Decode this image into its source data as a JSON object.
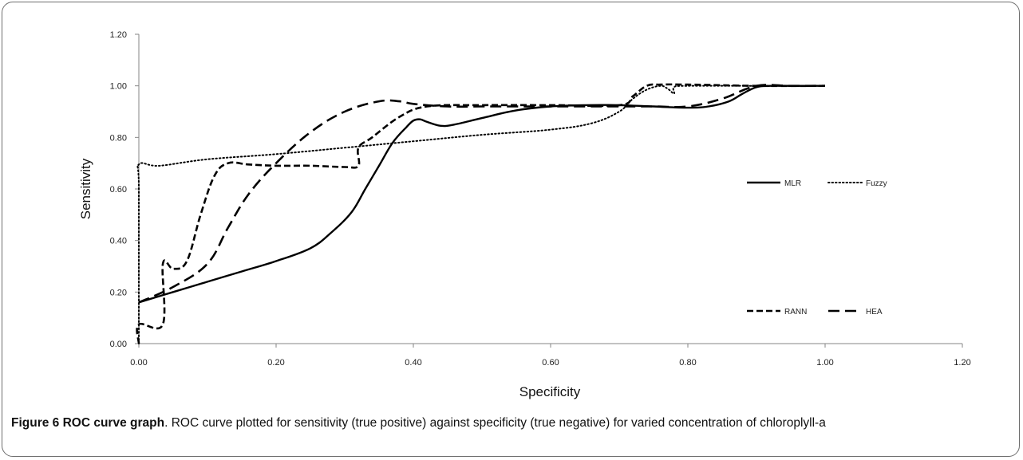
{
  "chart_data": {
    "type": "line",
    "xlabel": "Specificity",
    "ylabel": "Sensitivity",
    "xlim": [
      0,
      1.2
    ],
    "ylim": [
      0,
      1.2
    ],
    "xticks": [
      "0.00",
      "0.20",
      "0.40",
      "0.60",
      "0.80",
      "1.00",
      "1.20"
    ],
    "yticks": [
      "0.00",
      "0.20",
      "0.40",
      "0.60",
      "0.80",
      "1.00",
      "1.20"
    ],
    "grid": false,
    "legend_placement": "right",
    "series": [
      {
        "name": "MLR",
        "dash": "solid",
        "color": "#000000",
        "x": [
          0.0,
          0.05,
          0.1,
          0.15,
          0.2,
          0.25,
          0.28,
          0.31,
          0.33,
          0.35,
          0.37,
          0.39,
          0.4,
          0.41,
          0.42,
          0.44,
          0.46,
          0.5,
          0.55,
          0.6,
          0.65,
          0.7,
          0.75,
          0.8,
          0.83,
          0.86,
          0.88,
          0.9,
          0.92,
          0.95,
          1.0
        ],
        "y": [
          0.16,
          0.2,
          0.24,
          0.28,
          0.32,
          0.37,
          0.43,
          0.51,
          0.6,
          0.69,
          0.78,
          0.84,
          0.865,
          0.87,
          0.86,
          0.845,
          0.85,
          0.875,
          0.905,
          0.92,
          0.925,
          0.925,
          0.92,
          0.915,
          0.92,
          0.94,
          0.97,
          0.995,
          1.0,
          1.0,
          1.0
        ]
      },
      {
        "name": "Fuzzy",
        "dash": "dotted",
        "color": "#000000",
        "x": [
          0.0,
          0.0,
          0.0,
          0.03,
          0.1,
          0.2,
          0.3,
          0.4,
          0.5,
          0.6,
          0.66,
          0.7,
          0.72,
          0.74,
          0.76,
          0.77,
          0.78,
          0.78,
          0.8,
          0.9,
          0.95,
          1.0
        ],
        "y": [
          0.0,
          0.6,
          0.695,
          0.69,
          0.715,
          0.735,
          0.76,
          0.785,
          0.81,
          0.83,
          0.855,
          0.9,
          0.95,
          0.985,
          1.0,
          0.99,
          0.97,
          0.995,
          1.0,
          1.0,
          1.0,
          1.0
        ]
      },
      {
        "name": "RANN",
        "dash": "short-dash",
        "color": "#000000",
        "x": [
          0.0,
          0.0,
          0.035,
          0.035,
          0.05,
          0.07,
          0.09,
          0.11,
          0.13,
          0.16,
          0.2,
          0.25,
          0.3,
          0.32,
          0.32,
          0.34,
          0.38,
          0.42,
          0.5,
          0.6,
          0.7,
          0.72,
          0.74,
          0.76,
          0.8,
          0.9,
          1.0
        ],
        "y": [
          0.0,
          0.075,
          0.075,
          0.31,
          0.29,
          0.32,
          0.5,
          0.65,
          0.7,
          0.695,
          0.69,
          0.69,
          0.685,
          0.69,
          0.76,
          0.8,
          0.88,
          0.92,
          0.925,
          0.925,
          0.925,
          0.96,
          1.0,
          1.005,
          1.005,
          1.0,
          1.0
        ]
      },
      {
        "name": "HEA",
        "dash": "long-dash",
        "color": "#000000",
        "x": [
          0.0,
          0.05,
          0.1,
          0.13,
          0.16,
          0.2,
          0.25,
          0.3,
          0.35,
          0.38,
          0.4,
          0.45,
          0.5,
          0.55,
          0.6,
          0.65,
          0.7,
          0.75,
          0.8,
          0.85,
          0.9,
          0.95,
          1.0
        ],
        "y": [
          0.16,
          0.22,
          0.31,
          0.45,
          0.58,
          0.7,
          0.82,
          0.9,
          0.94,
          0.94,
          0.93,
          0.92,
          0.92,
          0.92,
          0.92,
          0.92,
          0.92,
          0.92,
          0.92,
          0.95,
          1.0,
          1.0,
          1.0
        ]
      }
    ]
  },
  "caption": {
    "label": "Figure 6 ROC curve graph",
    "text": ". ROC curve plotted for sensitivity (true positive) against specificity (true negative) for varied concentration of chloroplyll-a"
  }
}
